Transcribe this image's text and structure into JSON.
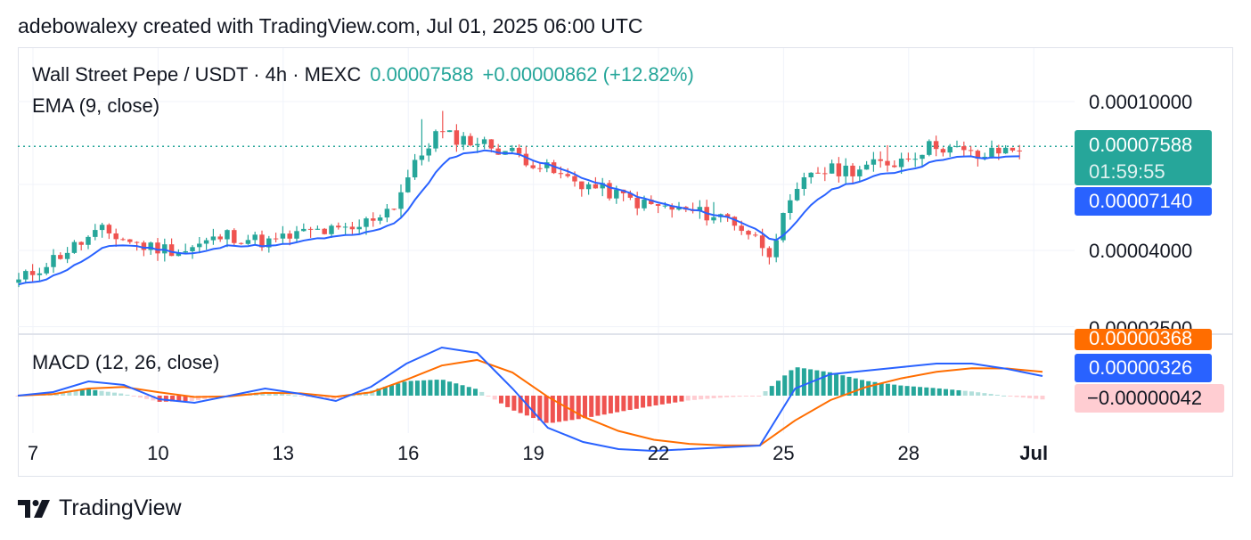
{
  "caption": "adebowalexy created with TradingView.com, Jul 01, 2025 06:00 UTC",
  "legend": {
    "symbol": "Wall Street Pepe / USDT · 4h · MEXC",
    "price": "0.00007588",
    "change": "+0.00000862 (+12.82%)",
    "ema_label": "EMA (9, close)",
    "macd_label": "MACD (12, 26, close)"
  },
  "price_axis": {
    "labels": [
      "0.00010000",
      "0.00004000",
      "0.00002500"
    ]
  },
  "tags": {
    "last_price": "0.00007588",
    "countdown": "01:59:55",
    "ema_value": "0.00007140",
    "signal_value": "0.00000368",
    "macd_value": "0.00000326",
    "hist_value": "−0.00000042"
  },
  "footer": {
    "brand": "TradingView"
  },
  "colors": {
    "up": "#26a69a",
    "down": "#ef5350",
    "ema": "#2962ff",
    "macd": "#2962ff",
    "signal": "#ff6d00",
    "hist_up_strong": "#26a69a",
    "hist_up_weak": "#b2dfdb",
    "hist_down_strong": "#ef5350",
    "hist_down_weak": "#ffcdd2"
  },
  "chart_data": {
    "type": "candlestick",
    "title": "Wall Street Pepe / USDT · 4h · MEXC",
    "x_ticks": [
      "7",
      "10",
      "13",
      "16",
      "19",
      "22",
      "25",
      "28",
      "Jul"
    ],
    "y_scale": "log",
    "y_ticks": [
      0.0001,
      4e-05,
      2.5e-05
    ],
    "last_price": 7.588e-05,
    "series_close_by_day": {
      "x": [
        "Jun 7",
        "Jun 8",
        "Jun 9",
        "Jun 10",
        "Jun 11",
        "Jun 12",
        "Jun 13",
        "Jun 14",
        "Jun 15",
        "Jun 16",
        "Jun 17",
        "Jun 18",
        "Jun 19",
        "Jun 20",
        "Jun 21",
        "Jun 22",
        "Jun 23",
        "Jun 24",
        "Jun 25",
        "Jun 26",
        "Jun 27",
        "Jun 28",
        "Jun 29",
        "Jun 30",
        "Jul 1"
      ],
      "close": [
        3.3e-05,
        3.9e-05,
        4.5e-05,
        4.1e-05,
        4e-05,
        4.4e-05,
        4.2e-05,
        4.5e-05,
        4.5e-05,
        5.3e-05,
        8.2e-05,
        7.8e-05,
        7.2e-05,
        6.3e-05,
        5.8e-05,
        5.3e-05,
        5.1e-05,
        4.9e-05,
        4e-05,
        6.5e-05,
        6.6e-05,
        6.9e-05,
        7.7e-05,
        7.1e-05,
        7.59e-05
      ]
    },
    "ema": {
      "name": "EMA (9, close)",
      "last": 7.14e-05
    },
    "macd": {
      "name": "MACD (12, 26, close)",
      "macd_last": 3.26e-06,
      "signal_last": 3.68e-06,
      "hist_last": -4.2e-07
    }
  }
}
